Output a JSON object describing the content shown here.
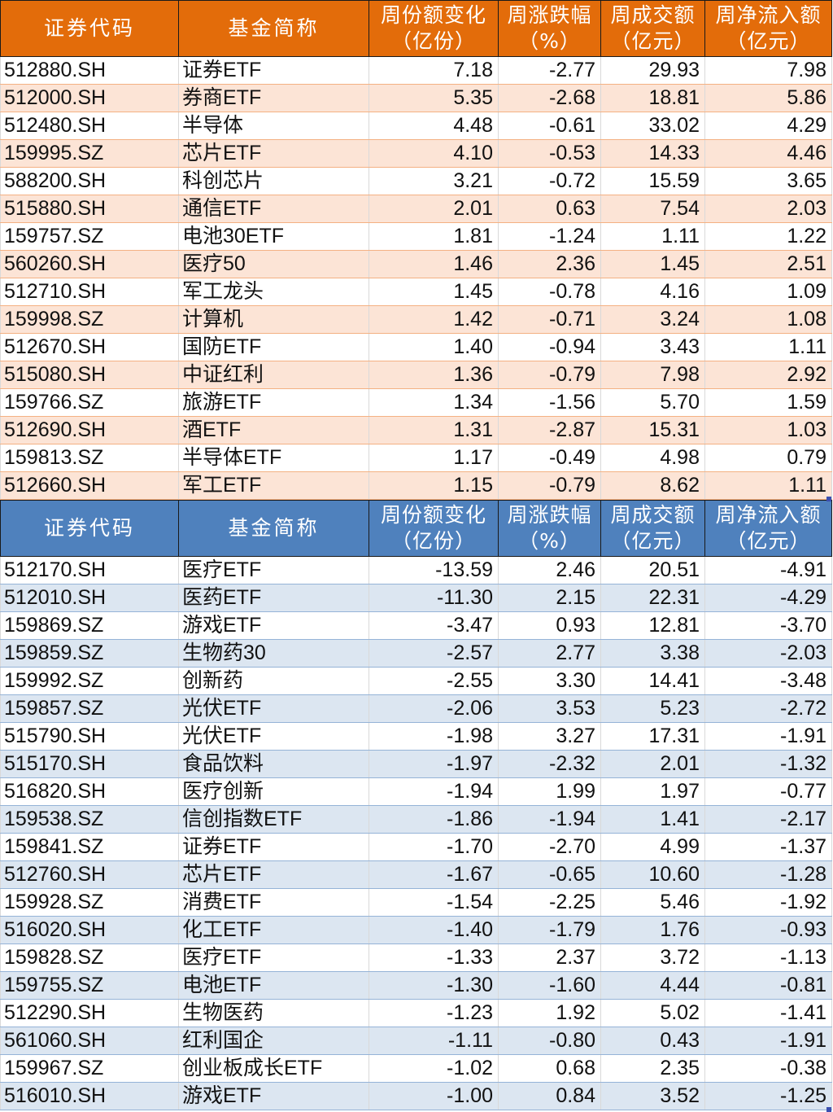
{
  "tables": [
    {
      "id": "inflow",
      "header_color": "#e36c0a",
      "alt_row_color": "#fce4d6",
      "headers": [
        {
          "line1": "证券代码",
          "line2": ""
        },
        {
          "line1": "基金简称",
          "line2": ""
        },
        {
          "line1": "周份额变化",
          "line2": "（亿份）"
        },
        {
          "line1": "周涨跌幅",
          "line2": "（%）"
        },
        {
          "line1": "周成交额",
          "line2": "（亿元）"
        },
        {
          "line1": "周净流入额",
          "line2": "（亿元）"
        }
      ],
      "rows": [
        [
          "512880.SH",
          "证券ETF",
          "7.18",
          "-2.77",
          "29.93",
          "7.98"
        ],
        [
          "512000.SH",
          "券商ETF",
          "5.35",
          "-2.68",
          "18.81",
          "5.86"
        ],
        [
          "512480.SH",
          "半导体",
          "4.48",
          "-0.61",
          "33.02",
          "4.29"
        ],
        [
          "159995.SZ",
          "芯片ETF",
          "4.10",
          "-0.53",
          "14.33",
          "4.46"
        ],
        [
          "588200.SH",
          "科创芯片",
          "3.21",
          "-0.72",
          "15.59",
          "3.65"
        ],
        [
          "515880.SH",
          "通信ETF",
          "2.01",
          "0.63",
          "7.54",
          "2.03"
        ],
        [
          "159757.SZ",
          "电池30ETF",
          "1.81",
          "-1.24",
          "1.11",
          "1.22"
        ],
        [
          "560260.SH",
          "医疗50",
          "1.46",
          "2.36",
          "1.45",
          "2.51"
        ],
        [
          "512710.SH",
          "军工龙头",
          "1.45",
          "-0.78",
          "4.16",
          "1.09"
        ],
        [
          "159998.SZ",
          "计算机",
          "1.42",
          "-0.71",
          "3.24",
          "1.08"
        ],
        [
          "512670.SH",
          "国防ETF",
          "1.40",
          "-0.94",
          "3.43",
          "1.11"
        ],
        [
          "515080.SH",
          "中证红利",
          "1.36",
          "-0.79",
          "7.98",
          "2.92"
        ],
        [
          "159766.SZ",
          "旅游ETF",
          "1.34",
          "-1.56",
          "5.70",
          "1.59"
        ],
        [
          "512690.SH",
          "酒ETF",
          "1.31",
          "-2.87",
          "15.31",
          "1.03"
        ],
        [
          "159813.SZ",
          "半导体ETF",
          "1.17",
          "-0.49",
          "4.98",
          "0.79"
        ],
        [
          "512660.SH",
          "军工ETF",
          "1.15",
          "-0.79",
          "8.62",
          "1.11"
        ]
      ]
    },
    {
      "id": "outflow",
      "header_color": "#4f81bd",
      "alt_row_color": "#dce6f1",
      "headers": [
        {
          "line1": "证券代码",
          "line2": ""
        },
        {
          "line1": "基金简称",
          "line2": ""
        },
        {
          "line1": "周份额变化",
          "line2": "（亿份）"
        },
        {
          "line1": "周涨跌幅",
          "line2": "（%）"
        },
        {
          "line1": "周成交额",
          "line2": "（亿元）"
        },
        {
          "line1": "周净流入额",
          "line2": "（亿元）"
        }
      ],
      "rows": [
        [
          "512170.SH",
          "医疗ETF",
          "-13.59",
          "2.46",
          "20.51",
          "-4.91"
        ],
        [
          "512010.SH",
          "医药ETF",
          "-11.30",
          "2.15",
          "22.31",
          "-4.29"
        ],
        [
          "159869.SZ",
          "游戏ETF",
          "-3.47",
          "0.93",
          "12.81",
          "-3.70"
        ],
        [
          "159859.SZ",
          "生物药30",
          "-2.57",
          "2.77",
          "3.38",
          "-2.03"
        ],
        [
          "159992.SZ",
          "创新药",
          "-2.55",
          "3.30",
          "14.41",
          "-3.48"
        ],
        [
          "159857.SZ",
          "光伏ETF",
          "-2.06",
          "3.53",
          "5.23",
          "-2.72"
        ],
        [
          "515790.SH",
          "光伏ETF",
          "-1.98",
          "3.27",
          "17.31",
          "-1.91"
        ],
        [
          "515170.SH",
          "食品饮料",
          "-1.97",
          "-2.32",
          "2.01",
          "-1.32"
        ],
        [
          "516820.SH",
          "医疗创新",
          "-1.94",
          "1.99",
          "1.97",
          "-0.77"
        ],
        [
          "159538.SZ",
          "信创指数ETF",
          "-1.86",
          "-1.94",
          "1.41",
          "-2.17"
        ],
        [
          "159841.SZ",
          "证券ETF",
          "-1.70",
          "-2.70",
          "4.99",
          "-1.37"
        ],
        [
          "512760.SH",
          "芯片ETF",
          "-1.67",
          "-0.65",
          "10.60",
          "-1.28"
        ],
        [
          "159928.SZ",
          "消费ETF",
          "-1.54",
          "-2.25",
          "5.46",
          "-1.92"
        ],
        [
          "516020.SH",
          "化工ETF",
          "-1.40",
          "-1.79",
          "1.76",
          "-0.93"
        ],
        [
          "159828.SZ",
          "医疗ETF",
          "-1.33",
          "2.37",
          "3.72",
          "-1.13"
        ],
        [
          "159755.SZ",
          "电池ETF",
          "-1.30",
          "-1.60",
          "4.44",
          "-0.81"
        ],
        [
          "512290.SH",
          "生物医药",
          "-1.23",
          "1.92",
          "5.02",
          "-1.41"
        ],
        [
          "561060.SH",
          "红利国企",
          "-1.11",
          "-0.80",
          "0.43",
          "-1.91"
        ],
        [
          "159967.SZ",
          "创业板成长ETF",
          "-1.02",
          "0.68",
          "2.35",
          "-0.38"
        ],
        [
          "516010.SH",
          "游戏ETF",
          "-1.00",
          "0.84",
          "3.52",
          "-1.25"
        ]
      ]
    }
  ]
}
